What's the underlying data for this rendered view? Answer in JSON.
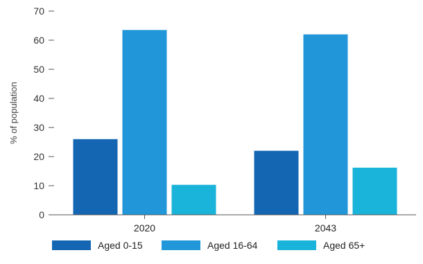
{
  "chart_data": {
    "type": "bar",
    "categories": [
      "2020",
      "2043"
    ],
    "series": [
      {
        "name": "Aged 0-15",
        "values": [
          26,
          22
        ],
        "color": "#1466b3"
      },
      {
        "name": "Aged 16-64",
        "values": [
          63.5,
          62
        ],
        "color": "#2196d8"
      },
      {
        "name": "Aged 65+",
        "values": [
          10.3,
          16.2
        ],
        "color": "#1ab3d9"
      }
    ],
    "title": "",
    "xlabel": "",
    "ylabel": "% of population",
    "ylim": [
      0,
      70
    ],
    "yticks": [
      0,
      10,
      20,
      30,
      40,
      50,
      60,
      70
    ],
    "grid": false,
    "legend_position": "bottom"
  }
}
